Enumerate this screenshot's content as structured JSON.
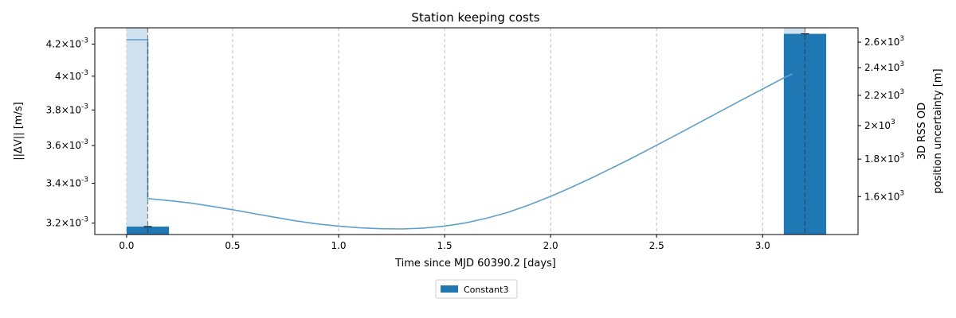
{
  "chart_data": {
    "type": "bar",
    "title": "Station keeping costs",
    "xlabel": "Time since MJD 60390.2 [days]",
    "ylabel": "||ΔV|| [m/s]",
    "ylabel_right_lines": [
      "3D RSS OD",
      "position uncertainty [m]"
    ],
    "xlim": [
      -0.15,
      3.45
    ],
    "ylim": [
      0.003145,
      0.004305
    ],
    "yscale": "log",
    "ylim_right": [
      1420,
      2720
    ],
    "yscale_right": "log",
    "grid": "x-dashed",
    "legend_placement": "bottom-center",
    "x_ticks": [
      {
        "value": 0.0,
        "label": "0.0"
      },
      {
        "value": 0.5,
        "label": "0.5"
      },
      {
        "value": 1.0,
        "label": "1.0"
      },
      {
        "value": 1.5,
        "label": "1.5"
      },
      {
        "value": 2.0,
        "label": "2.0"
      },
      {
        "value": 2.5,
        "label": "2.5"
      },
      {
        "value": 3.0,
        "label": "3.0"
      }
    ],
    "y_ticks": [
      {
        "value": 0.0032,
        "mantissa": "3.2",
        "exp": "-3"
      },
      {
        "value": 0.0034,
        "mantissa": "3.4",
        "exp": "-3"
      },
      {
        "value": 0.0036,
        "mantissa": "3.6",
        "exp": "-3"
      },
      {
        "value": 0.0038,
        "mantissa": "3.8",
        "exp": "-3"
      },
      {
        "value": 0.004,
        "mantissa": "4",
        "exp": "-3"
      },
      {
        "value": 0.0042,
        "mantissa": "4.2",
        "exp": "-3"
      }
    ],
    "y_right_ticks": [
      {
        "value": 1600,
        "mantissa": "1.6",
        "exp": "3"
      },
      {
        "value": 1800,
        "mantissa": "1.8",
        "exp": "3"
      },
      {
        "value": 2000,
        "mantissa": "2",
        "exp": "3"
      },
      {
        "value": 2200,
        "mantissa": "2.2",
        "exp": "3"
      },
      {
        "value": 2400,
        "mantissa": "2.4",
        "exp": "3"
      },
      {
        "value": 2600,
        "mantissa": "2.6",
        "exp": "3"
      }
    ],
    "series": [
      {
        "name": "Constant3",
        "color": "#1f77b4",
        "bars": [
          {
            "x_start": 0.0,
            "x_end": 0.2,
            "value": 0.003183,
            "marker_x": 0.1
          },
          {
            "x_start": 3.1,
            "x_end": 3.3,
            "value": 0.004266,
            "marker_x": 3.2
          }
        ]
      }
    ],
    "shaded_spans": [
      {
        "x_start": 0.0,
        "x_end": 0.1,
        "color": "#cfe1ef"
      },
      {
        "x_start": 3.1,
        "x_end": 3.2,
        "color": "#cfe1ef"
      }
    ],
    "uncertainty_line": {
      "color": "#5fa0cb",
      "points": [
        [
          0.0,
          2620
        ],
        [
          0.1,
          2620
        ],
        [
          0.1,
          1590
        ],
        [
          0.2,
          1580
        ],
        [
          0.3,
          1568
        ],
        [
          0.4,
          1552
        ],
        [
          0.5,
          1535
        ],
        [
          0.6,
          1517
        ],
        [
          0.7,
          1499
        ],
        [
          0.8,
          1482
        ],
        [
          0.9,
          1468
        ],
        [
          1.0,
          1458
        ],
        [
          1.1,
          1450
        ],
        [
          1.2,
          1446
        ],
        [
          1.3,
          1445
        ],
        [
          1.4,
          1449
        ],
        [
          1.5,
          1458
        ],
        [
          1.6,
          1473
        ],
        [
          1.7,
          1495
        ],
        [
          1.8,
          1523
        ],
        [
          1.9,
          1559
        ],
        [
          2.0,
          1601
        ],
        [
          2.1,
          1648
        ],
        [
          2.2,
          1700
        ],
        [
          2.3,
          1756
        ],
        [
          2.4,
          1816
        ],
        [
          2.5,
          1880
        ],
        [
          2.6,
          1947
        ],
        [
          2.7,
          2018
        ],
        [
          2.8,
          2091
        ],
        [
          2.9,
          2167
        ],
        [
          3.0,
          2244
        ],
        [
          3.1,
          2324
        ],
        [
          3.14,
          2352
        ]
      ]
    }
  }
}
